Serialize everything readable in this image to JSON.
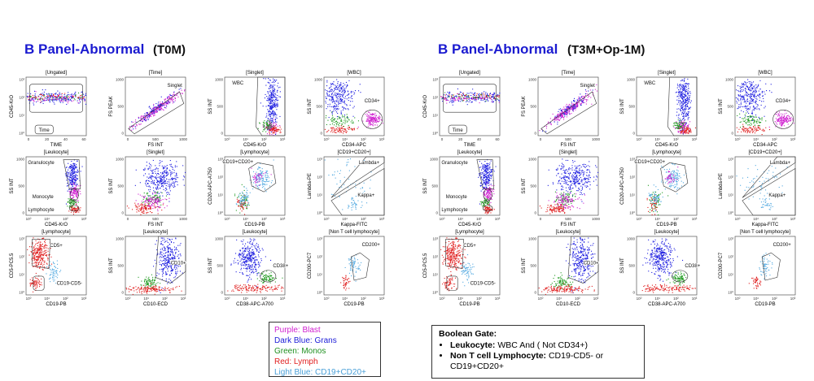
{
  "panels": [
    {
      "title": "B Panel-Abnormal",
      "timepoint": "(T0M)",
      "plots": [
        {
          "header": "[Ungated]",
          "x_label": "TIME",
          "y_label": "CD45-KrO",
          "x_ticks": [
            "0",
            "20",
            "40",
            "60"
          ],
          "y_ticks": [
            "10⁰",
            "10¹",
            "10²",
            "10³"
          ],
          "gates": [
            "Time"
          ]
        },
        {
          "header": "[Time]",
          "x_label": "FS INT",
          "y_label": "FS PEAK",
          "x_ticks": [
            "0",
            "500",
            "1000"
          ],
          "y_ticks": [
            "0",
            "500",
            "1000"
          ],
          "gates": [
            "Singlet"
          ]
        },
        {
          "header": "[Singlet]",
          "x_label": "CD45-KrO",
          "y_label": "SS INT",
          "x_ticks": [
            "10⁰",
            "10¹",
            "10²",
            "10³"
          ],
          "y_ticks": [
            "0",
            "500",
            "1000"
          ],
          "gates": [
            "WBC"
          ]
        },
        {
          "header": "[WBC]",
          "x_label": "CD34-APC",
          "y_label": "SS INT",
          "x_ticks": [
            "10⁰",
            "10¹",
            "10²",
            "10³"
          ],
          "y_ticks": [
            "0",
            "500",
            "1000"
          ],
          "gates": [
            "CD34+"
          ]
        },
        {
          "header": "[Leukocyte]",
          "x_label": "CD45-KrO",
          "y_label": "SS INT",
          "x_ticks": [
            "10⁰",
            "10¹",
            "10²",
            "10³"
          ],
          "y_ticks": [
            "0",
            "500",
            "1000"
          ],
          "gates": [
            "Granulocyte",
            "Monocyte",
            "Lymphocyte"
          ]
        },
        {
          "header": "[Singlet]",
          "x_label": "FS INT",
          "y_label": "SS INT",
          "x_ticks": [
            "0",
            "500",
            "1000"
          ],
          "y_ticks": [
            "0",
            "500",
            "1000"
          ],
          "gates": []
        },
        {
          "header": "[Lymphocyte]",
          "x_label": "CD19-PB",
          "y_label": "CD20-APC-A750",
          "x_ticks": [
            "10⁰",
            "10¹",
            "10²",
            "10³"
          ],
          "y_ticks": [
            "10⁰",
            "10¹",
            "10²",
            "10³"
          ],
          "gates": [
            "CD19+CD20+"
          ]
        },
        {
          "header": "[CD19+CD20+]",
          "x_label": "Kappa-FITC",
          "y_label": "Lambda-PE",
          "x_ticks": [
            "10⁰",
            "10¹",
            "10²",
            "10³"
          ],
          "y_ticks": [
            "10⁰",
            "10¹",
            "10²",
            "10³"
          ],
          "gates": [
            "Lambda+",
            "Kappa+"
          ]
        },
        {
          "header": "[Lymphocyte]",
          "x_label": "CD19-PB",
          "y_label": "CD5-PC5.5",
          "x_ticks": [
            "10⁰",
            "10¹",
            "10²",
            "10³"
          ],
          "y_ticks": [
            "10⁰",
            "10¹",
            "10²",
            "10³"
          ],
          "gates": [
            "CD5+",
            "CD19-CD5-"
          ]
        },
        {
          "header": "[Leukocyte]",
          "x_label": "CD10-ECD",
          "y_label": "SS INT",
          "x_ticks": [
            "10⁰",
            "10¹",
            "10²",
            "10³"
          ],
          "y_ticks": [
            "0",
            "500",
            "1000"
          ],
          "gates": [
            "CD10+"
          ]
        },
        {
          "header": "[Leukocyte]",
          "x_label": "CD38-APC-A700",
          "y_label": "SS INT",
          "x_ticks": [
            "10⁰",
            "10¹",
            "10²",
            "10³"
          ],
          "y_ticks": [
            "0",
            "500",
            "1000"
          ],
          "gates": [
            "CD38+"
          ]
        },
        {
          "header": "[Non T cell lymphocyte]",
          "x_label": "CD19-PB",
          "y_label": "CD200-PC7",
          "x_ticks": [
            "10⁰",
            "10¹",
            "10²",
            "10³"
          ],
          "y_ticks": [
            "10⁰",
            "10¹",
            "10²",
            "10³"
          ],
          "gates": [
            "CD200+"
          ]
        }
      ]
    },
    {
      "title": "B Panel-Abnormal",
      "timepoint": "(T3M+Op-1M)",
      "plots": [
        {
          "header": "[Ungated]",
          "x_label": "TIME",
          "y_label": "CD45-KrO",
          "x_ticks": [
            "0",
            "20",
            "40",
            "60"
          ],
          "y_ticks": [
            "10⁰",
            "10¹",
            "10²",
            "10³"
          ],
          "gates": [
            "Time"
          ]
        },
        {
          "header": "[Time]",
          "x_label": "FS INT",
          "y_label": "FS PEAK",
          "x_ticks": [
            "0",
            "500",
            "1000"
          ],
          "y_ticks": [
            "0",
            "500",
            "1000"
          ],
          "gates": [
            "Singlet"
          ]
        },
        {
          "header": "[Singlet]",
          "x_label": "CD45-KrO",
          "y_label": "SS INT",
          "x_ticks": [
            "10⁰",
            "10¹",
            "10²",
            "10³"
          ],
          "y_ticks": [
            "0",
            "500",
            "1000"
          ],
          "gates": [
            "WBC"
          ]
        },
        {
          "header": "[WBC]",
          "x_label": "CD34-APC",
          "y_label": "SS INT",
          "x_ticks": [
            "10⁰",
            "10¹",
            "10²",
            "10³"
          ],
          "y_ticks": [
            "0",
            "500",
            "1000"
          ],
          "gates": [
            "CD34+"
          ]
        },
        {
          "header": "[Leukocyte]",
          "x_label": "CD45-KrO",
          "y_label": "SS INT",
          "x_ticks": [
            "10⁰",
            "10¹",
            "10²",
            "10³"
          ],
          "y_ticks": [
            "0",
            "500",
            "1000"
          ],
          "gates": [
            "Granulocyte",
            "Monocyte",
            "Lymphocyte"
          ]
        },
        {
          "header": "[Singlet]",
          "x_label": "FS INT",
          "y_label": "SS INT",
          "x_ticks": [
            "0",
            "500",
            "1000"
          ],
          "y_ticks": [
            "0",
            "500",
            "1000"
          ],
          "gates": []
        },
        {
          "header": "[Lymphocyte]",
          "x_label": "CD19-PB",
          "y_label": "CD20-APC-A750",
          "x_ticks": [
            "10⁰",
            "10¹",
            "10²",
            "10³"
          ],
          "y_ticks": [
            "10⁰",
            "10¹",
            "10²",
            "10³"
          ],
          "gates": [
            "CD19+CD20+"
          ]
        },
        {
          "header": "[CD19+CD20+]",
          "x_label": "Kappa-FITC",
          "y_label": "Lambda-PE",
          "x_ticks": [
            "10⁰",
            "10¹",
            "10²",
            "10³"
          ],
          "y_ticks": [
            "10⁰",
            "10¹",
            "10²",
            "10³"
          ],
          "gates": [
            "Lambda+",
            "Kappa+"
          ]
        },
        {
          "header": "[Lymphocyte]",
          "x_label": "CD19-PB",
          "y_label": "CD5-PC5.5",
          "x_ticks": [
            "10⁰",
            "10¹",
            "10²",
            "10³"
          ],
          "y_ticks": [
            "10⁰",
            "10¹",
            "10²",
            "10³"
          ],
          "gates": [
            "CD5+",
            "CD19-CD5-"
          ]
        },
        {
          "header": "[Leukocyte]",
          "x_label": "CD10-ECD",
          "y_label": "SS INT",
          "x_ticks": [
            "10⁰",
            "10¹",
            "10²",
            "10³"
          ],
          "y_ticks": [
            "0",
            "500",
            "1000"
          ],
          "gates": [
            "CD10+"
          ]
        },
        {
          "header": "[Leukocyte]",
          "x_label": "CD38-APC-A700",
          "y_label": "SS INT",
          "x_ticks": [
            "10⁰",
            "10¹",
            "10²",
            "10³"
          ],
          "y_ticks": [
            "0",
            "500",
            "1000"
          ],
          "gates": [
            "CD38+"
          ]
        },
        {
          "header": "[Non T cell lymphocyte]",
          "x_label": "CD19-PB",
          "y_label": "CD200-PC7",
          "x_ticks": [
            "10⁰",
            "10¹",
            "10²",
            "10³"
          ],
          "y_ticks": [
            "10⁰",
            "10¹",
            "10²",
            "10³"
          ],
          "gates": [
            "CD200+"
          ]
        }
      ]
    }
  ],
  "legend": [
    "Purple: Blast",
    "Dark Blue: Grans",
    "Green: Monos",
    "Red: Lymph",
    "Light Blue: CD19+CD20+"
  ],
  "boolean": {
    "title": "Boolean Gate:",
    "items": [
      {
        "term": "Leukocyte:",
        "text": "WBC And ( Not CD34+)"
      },
      {
        "term": "Non T cell Lymphocyte:",
        "text": "CD19-CD5- or CD19+CD20+"
      }
    ]
  }
}
